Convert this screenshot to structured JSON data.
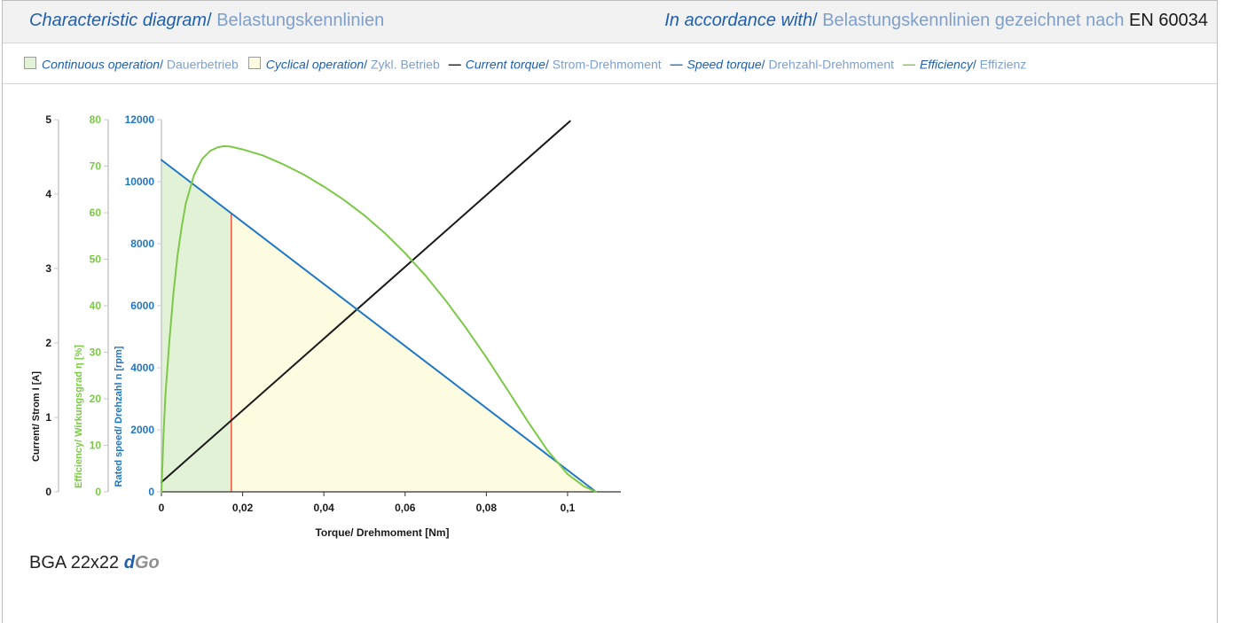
{
  "header": {
    "title_en": "Characteristic diagram",
    "title_sep": "/ ",
    "title_de": "Belastungskennlinien",
    "acc_en": "In accordance with",
    "acc_sep": "/ ",
    "acc_de": "Belastungskennlinien gezeichnet nach",
    "acc_std": "EN 60034"
  },
  "legend": {
    "continuous_en": "Continuous operation",
    "continuous_de": "Dauerbetrieb",
    "cyclical_en": "Cyclical operation",
    "cyclical_de": "Zykl. Betrieb",
    "current_en": "Current torque",
    "current_de": "Strom-Drehmoment",
    "speed_en": "Speed torque",
    "speed_de": "Drehzahl-Drehmoment",
    "efficiency_en": "Efficiency",
    "efficiency_de": "Effizienz",
    "sep": "/ ",
    "dash": "—"
  },
  "colors": {
    "current": "#1a1a1a",
    "speed": "#1f77c4",
    "efficiency": "#7cc847",
    "continuous_fill": "#e2f2d7",
    "cyclical_fill": "#fdfce0",
    "limit_line": "#e8604c",
    "accent_blue": "#1f5fae",
    "muted_blue": "#7f9fcc"
  },
  "chart_data": {
    "type": "line",
    "xlabel": "Torque/ Drehmoment [Nm]",
    "xlim": [
      0,
      0.107
    ],
    "x_ticks": [
      0,
      0.02,
      0.04,
      0.06,
      0.08,
      0.1
    ],
    "x_tick_labels": [
      "0",
      "0,02",
      "0,04",
      "0,06",
      "0,08",
      "0,1"
    ],
    "axes": [
      {
        "id": "current",
        "label": "Current/ Strom I [A]",
        "min": 0,
        "max": 5,
        "ticks": [
          0,
          1,
          2,
          3,
          4,
          5
        ],
        "tick_labels": [
          "0",
          "1",
          "2",
          "3",
          "4",
          "5"
        ]
      },
      {
        "id": "efficiency",
        "label": "Efficiency/ Wirkungsgrad η [%]",
        "min": 0,
        "max": 80,
        "ticks": [
          0,
          10,
          20,
          30,
          40,
          50,
          60,
          70,
          80
        ],
        "tick_labels": [
          "0",
          "10",
          "20",
          "30",
          "40",
          "50",
          "60",
          "70",
          "80"
        ]
      },
      {
        "id": "speed",
        "label": "Rated speed/ Drehzahl n [rpm]",
        "min": 0,
        "max": 12000,
        "ticks": [
          0,
          2000,
          4000,
          6000,
          8000,
          10000,
          12000
        ],
        "tick_labels": [
          "0",
          "2000",
          "4000",
          "6000",
          "8000",
          "10000",
          "12000"
        ]
      }
    ],
    "series": [
      {
        "name": "Current torque",
        "axis": "current",
        "x": [
          0,
          0.1006
        ],
        "y": [
          0.13,
          4.98
        ]
      },
      {
        "name": "Speed torque",
        "axis": "speed",
        "x": [
          0,
          0.107
        ],
        "y": [
          10700,
          0
        ]
      },
      {
        "name": "Efficiency",
        "axis": "efficiency",
        "x": [
          0,
          0.0005,
          0.001,
          0.002,
          0.003,
          0.004,
          0.005,
          0.006,
          0.008,
          0.01,
          0.012,
          0.014,
          0.0155,
          0.017,
          0.02,
          0.025,
          0.03,
          0.035,
          0.04,
          0.045,
          0.05,
          0.055,
          0.06,
          0.065,
          0.07,
          0.075,
          0.08,
          0.085,
          0.09,
          0.095,
          0.1,
          0.104,
          0.107
        ],
        "y": [
          0,
          12,
          21,
          33,
          43,
          51,
          57,
          62,
          68,
          71.5,
          73.3,
          74.1,
          74.3,
          74.2,
          73.6,
          72.3,
          70.4,
          68.2,
          65.6,
          62.7,
          59.4,
          55.6,
          51.3,
          46.5,
          41.1,
          35.2,
          28.9,
          22.2,
          15.4,
          9.0,
          3.8,
          1.2,
          0
        ]
      }
    ],
    "regions": [
      {
        "name": "Continuous operation",
        "x": [
          0,
          0.0172
        ]
      },
      {
        "name": "Cyclical operation",
        "x": [
          0.0172,
          0.107
        ]
      }
    ],
    "limit_x": 0.0172
  },
  "product": {
    "model": "BGA 22x22",
    "brand_d": "d",
    "brand_go": "Go"
  }
}
